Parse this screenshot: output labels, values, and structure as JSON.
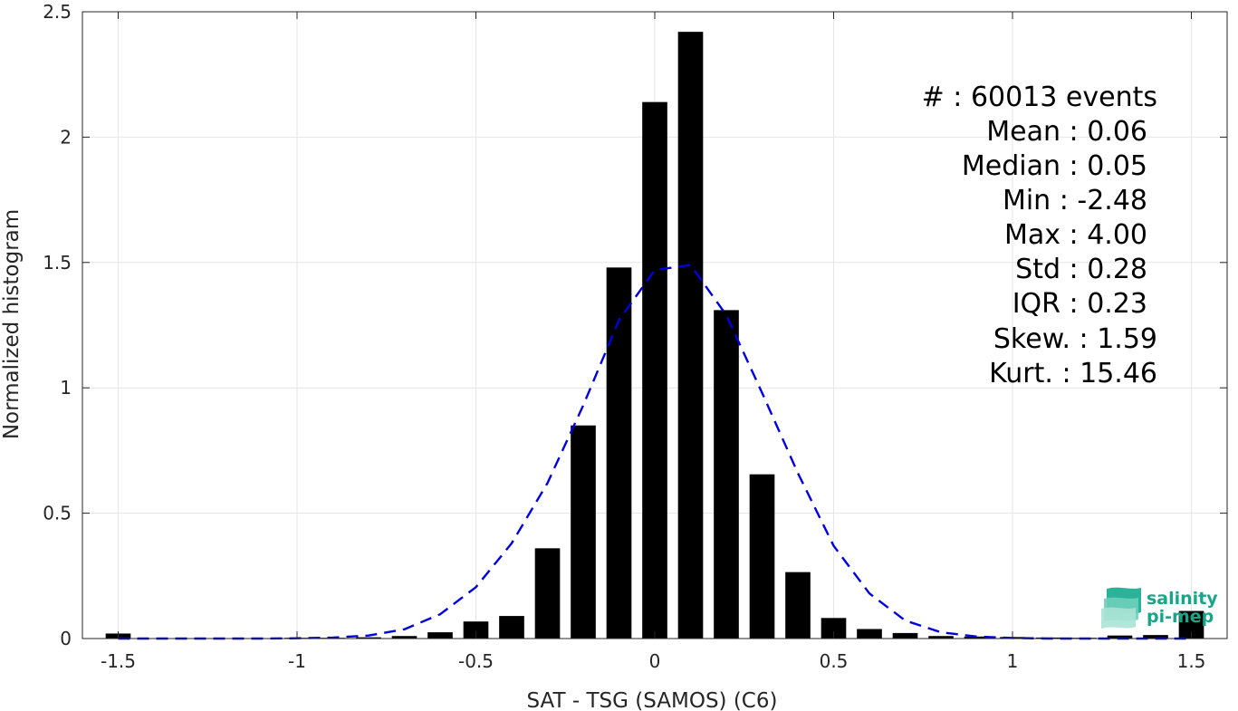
{
  "chart_data": {
    "type": "bar",
    "title": "",
    "xlabel": "SAT - TSG (SAMOS) (C6)",
    "ylabel": "Normalized histogram",
    "xlim": [
      -1.6,
      1.6
    ],
    "ylim": [
      0,
      2.5
    ],
    "grid": true,
    "x_ticks": [
      -1.5,
      -1,
      -0.5,
      0,
      0.5,
      1,
      1.5
    ],
    "x_tick_labels": [
      "-1.5",
      "-1",
      "-0.5",
      "0",
      "0.5",
      "1",
      "1.5"
    ],
    "y_ticks": [
      0,
      0.5,
      1,
      1.5,
      2,
      2.5
    ],
    "y_tick_labels": [
      "0",
      "0.5",
      "1",
      "1.5",
      "2",
      "2.5"
    ],
    "bar_width": 0.07,
    "bars": {
      "x": [
        -1.5,
        -1.4,
        -1.3,
        -1.2,
        -1.1,
        -1.0,
        -0.9,
        -0.8,
        -0.7,
        -0.6,
        -0.5,
        -0.4,
        -0.3,
        -0.2,
        -0.1,
        0.0,
        0.1,
        0.2,
        0.3,
        0.4,
        0.5,
        0.6,
        0.7,
        0.8,
        0.9,
        1.0,
        1.1,
        1.2,
        1.3,
        1.4,
        1.5
      ],
      "values": [
        0.02,
        0.0,
        0.0,
        0.0,
        0.0,
        0.003,
        0.003,
        0.005,
        0.01,
        0.025,
        0.068,
        0.09,
        0.36,
        0.85,
        1.48,
        2.14,
        2.42,
        1.31,
        0.655,
        0.265,
        0.082,
        0.038,
        0.022,
        0.01,
        0.008,
        0.006,
        0.004,
        0.003,
        0.012,
        0.014,
        0.11
      ]
    },
    "fit_curve": {
      "style": "dashed",
      "color": "#0000dd",
      "x": [
        -1.5,
        -1.4,
        -1.3,
        -1.2,
        -1.1,
        -1.0,
        -0.9,
        -0.8,
        -0.7,
        -0.6,
        -0.5,
        -0.4,
        -0.3,
        -0.2,
        -0.1,
        0.0,
        0.1,
        0.2,
        0.3,
        0.4,
        0.5,
        0.6,
        0.7,
        0.8,
        0.9,
        1.0,
        1.1,
        1.2,
        1.3,
        1.4,
        1.5
      ],
      "y": [
        0.0,
        0.0,
        0.0,
        0.0,
        0.0,
        0.001,
        0.004,
        0.012,
        0.037,
        0.097,
        0.205,
        0.38,
        0.62,
        0.93,
        1.27,
        1.47,
        1.49,
        1.29,
        0.98,
        0.66,
        0.37,
        0.18,
        0.072,
        0.025,
        0.008,
        0.002,
        0.0,
        0.0,
        0.0,
        0.0,
        0.0
      ]
    },
    "bar_color": "#000000"
  },
  "stats": [
    {
      "label": "#  : 60013 events"
    },
    {
      "label": "Mean : 0.06"
    },
    {
      "label": "Median : 0.05"
    },
    {
      "label": "Min : -2.48"
    },
    {
      "label": "Max : 4.00"
    },
    {
      "label": "Std : 0.28"
    },
    {
      "label": "IQR : 0.23"
    },
    {
      "label": "Skew. : 1.59"
    },
    {
      "label": "Kurt. : 15.46"
    }
  ],
  "logo": {
    "line1": "salinity",
    "line2": "pi-mep",
    "color": "#1aa589"
  }
}
